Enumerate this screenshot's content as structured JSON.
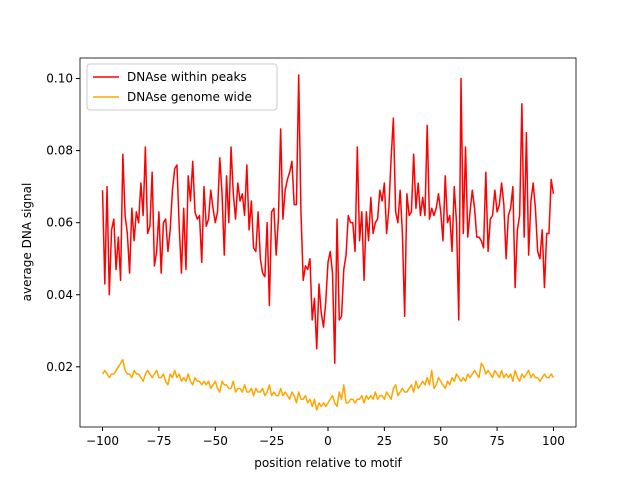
{
  "chart_data": {
    "type": "line",
    "xlabel": "position relative to motif",
    "ylabel": "average DNA signal",
    "xlim": [
      -110,
      110
    ],
    "ylim": [
      0.0033,
      0.1057
    ],
    "xticks": [
      {
        "value": -100,
        "label": "−100"
      },
      {
        "value": -75,
        "label": "−75"
      },
      {
        "value": -50,
        "label": "−50"
      },
      {
        "value": -25,
        "label": "−25"
      },
      0,
      25,
      50,
      75,
      100
    ],
    "yticks": [
      0.02,
      0.04,
      0.06,
      0.08,
      {
        "value": 0.1,
        "label": "0.10"
      }
    ],
    "legend": "upper left",
    "x": [
      -100,
      -99,
      -98,
      -97,
      -96,
      -95,
      -94,
      -93,
      -92,
      -91,
      -90,
      -89,
      -88,
      -87,
      -86,
      -85,
      -84,
      -83,
      -82,
      -81,
      -80,
      -79,
      -78,
      -77,
      -76,
      -75,
      -74,
      -73,
      -72,
      -71,
      -70,
      -69,
      -68,
      -67,
      -66,
      -65,
      -64,
      -63,
      -62,
      -61,
      -60,
      -59,
      -58,
      -57,
      -56,
      -55,
      -54,
      -53,
      -52,
      -51,
      -50,
      -49,
      -48,
      -47,
      -46,
      -45,
      -44,
      -43,
      -42,
      -41,
      -40,
      -39,
      -38,
      -37,
      -36,
      -35,
      -34,
      -33,
      -32,
      -31,
      -30,
      -29,
      -28,
      -27,
      -26,
      -25,
      -24,
      -23,
      -22,
      -21,
      -20,
      -19,
      -18,
      -17,
      -16,
      -15,
      -14,
      -13,
      -12,
      -11,
      -10,
      -9,
      -8,
      -7,
      -6,
      -5,
      -4,
      -3,
      -2,
      -1,
      0,
      1,
      2,
      3,
      4,
      5,
      6,
      7,
      8,
      9,
      10,
      11,
      12,
      13,
      14,
      15,
      16,
      17,
      18,
      19,
      20,
      21,
      22,
      23,
      24,
      25,
      26,
      27,
      28,
      29,
      30,
      31,
      32,
      33,
      34,
      35,
      36,
      37,
      38,
      39,
      40,
      41,
      42,
      43,
      44,
      45,
      46,
      47,
      48,
      49,
      50,
      51,
      52,
      53,
      54,
      55,
      56,
      57,
      58,
      59,
      60,
      61,
      62,
      63,
      64,
      65,
      66,
      67,
      68,
      69,
      70,
      71,
      72,
      73,
      74,
      75,
      76,
      77,
      78,
      79,
      80,
      81,
      82,
      83,
      84,
      85,
      86,
      87,
      88,
      89,
      90,
      91,
      92,
      93,
      94,
      95,
      96,
      97,
      98,
      99,
      100
    ],
    "series": [
      {
        "name": "DNAse within peaks",
        "color": "#ff0000",
        "values": [
          0.069,
          0.043,
          0.07,
          0.04,
          0.058,
          0.061,
          0.047,
          0.056,
          0.044,
          0.079,
          0.062,
          0.057,
          0.046,
          0.064,
          0.055,
          0.063,
          0.06,
          0.071,
          0.062,
          0.081,
          0.057,
          0.059,
          0.074,
          0.048,
          0.052,
          0.063,
          0.046,
          0.06,
          0.061,
          0.052,
          0.058,
          0.069,
          0.075,
          0.076,
          0.059,
          0.046,
          0.064,
          0.047,
          0.073,
          0.066,
          0.077,
          0.063,
          0.061,
          0.062,
          0.049,
          0.07,
          0.059,
          0.061,
          0.069,
          0.064,
          0.06,
          0.063,
          0.078,
          0.068,
          0.051,
          0.073,
          0.06,
          0.081,
          0.068,
          0.061,
          0.071,
          0.066,
          0.068,
          0.062,
          0.076,
          0.058,
          0.066,
          0.053,
          0.052,
          0.063,
          0.05,
          0.046,
          0.045,
          0.06,
          0.037,
          0.063,
          0.064,
          0.051,
          0.061,
          0.086,
          0.061,
          0.069,
          0.072,
          0.074,
          0.077,
          0.065,
          0.065,
          0.101,
          0.063,
          0.044,
          0.048,
          0.047,
          0.05,
          0.033,
          0.039,
          0.025,
          0.043,
          0.035,
          0.031,
          0.038,
          0.049,
          0.052,
          0.046,
          0.021,
          0.061,
          0.033,
          0.034,
          0.047,
          0.051,
          0.062,
          0.06,
          0.06,
          0.052,
          0.081,
          0.055,
          0.063,
          0.044,
          0.063,
          0.055,
          0.067,
          0.057,
          0.06,
          0.061,
          0.069,
          0.066,
          0.071,
          0.057,
          0.064,
          0.078,
          0.089,
          0.063,
          0.06,
          0.069,
          0.057,
          0.034,
          0.068,
          0.062,
          0.063,
          0.079,
          0.064,
          0.071,
          0.062,
          0.067,
          0.062,
          0.087,
          0.061,
          0.064,
          0.062,
          0.064,
          0.068,
          0.063,
          0.055,
          0.073,
          0.06,
          0.062,
          0.052,
          0.07,
          0.06,
          0.033,
          0.1,
          0.057,
          0.081,
          0.056,
          0.063,
          0.069,
          0.064,
          0.056,
          0.056,
          0.055,
          0.053,
          0.074,
          0.052,
          0.061,
          0.062,
          0.069,
          0.063,
          0.065,
          0.071,
          0.065,
          0.05,
          0.062,
          0.064,
          0.07,
          0.042,
          0.058,
          0.062,
          0.093,
          0.056,
          0.085,
          0.051,
          0.066,
          0.071,
          0.064,
          0.052,
          0.05,
          0.058,
          0.042,
          0.057,
          0.057,
          0.072,
          0.068
        ]
      },
      {
        "name": "DNAse genome wide",
        "color": "#ffa500",
        "values": [
          0.018,
          0.019,
          0.018,
          0.017,
          0.018,
          0.018,
          0.019,
          0.02,
          0.021,
          0.022,
          0.019,
          0.018,
          0.018,
          0.017,
          0.019,
          0.018,
          0.018,
          0.017,
          0.016,
          0.018,
          0.019,
          0.018,
          0.017,
          0.018,
          0.019,
          0.017,
          0.017,
          0.018,
          0.016,
          0.015,
          0.018,
          0.017,
          0.019,
          0.017,
          0.018,
          0.016,
          0.017,
          0.016,
          0.018,
          0.016,
          0.015,
          0.017,
          0.016,
          0.016,
          0.015,
          0.016,
          0.015,
          0.016,
          0.014,
          0.015,
          0.016,
          0.014,
          0.013,
          0.016,
          0.015,
          0.015,
          0.014,
          0.014,
          0.016,
          0.013,
          0.014,
          0.014,
          0.013,
          0.015,
          0.013,
          0.013,
          0.014,
          0.012,
          0.014,
          0.013,
          0.013,
          0.014,
          0.012,
          0.013,
          0.015,
          0.012,
          0.013,
          0.012,
          0.012,
          0.014,
          0.012,
          0.013,
          0.012,
          0.011,
          0.013,
          0.012,
          0.01,
          0.013,
          0.011,
          0.011,
          0.012,
          0.01,
          0.011,
          0.009,
          0.011,
          0.008,
          0.01,
          0.009,
          0.01,
          0.009,
          0.01,
          0.011,
          0.012,
          0.01,
          0.009,
          0.013,
          0.011,
          0.015,
          0.01,
          0.01,
          0.011,
          0.011,
          0.01,
          0.011,
          0.011,
          0.012,
          0.01,
          0.012,
          0.011,
          0.012,
          0.011,
          0.013,
          0.011,
          0.012,
          0.012,
          0.011,
          0.013,
          0.012,
          0.011,
          0.014,
          0.015,
          0.012,
          0.013,
          0.014,
          0.013,
          0.013,
          0.014,
          0.015,
          0.013,
          0.016,
          0.014,
          0.015,
          0.016,
          0.015,
          0.017,
          0.015,
          0.019,
          0.014,
          0.015,
          0.017,
          0.016,
          0.015,
          0.014,
          0.016,
          0.015,
          0.017,
          0.016,
          0.018,
          0.017,
          0.016,
          0.017,
          0.016,
          0.018,
          0.017,
          0.018,
          0.019,
          0.018,
          0.017,
          0.021,
          0.02,
          0.018,
          0.019,
          0.018,
          0.017,
          0.019,
          0.018,
          0.017,
          0.019,
          0.017,
          0.018,
          0.017,
          0.018,
          0.016,
          0.019,
          0.017,
          0.016,
          0.018,
          0.017,
          0.018,
          0.019,
          0.017,
          0.018,
          0.017,
          0.017,
          0.016,
          0.017,
          0.018,
          0.017,
          0.017,
          0.018,
          0.017
        ]
      }
    ]
  }
}
